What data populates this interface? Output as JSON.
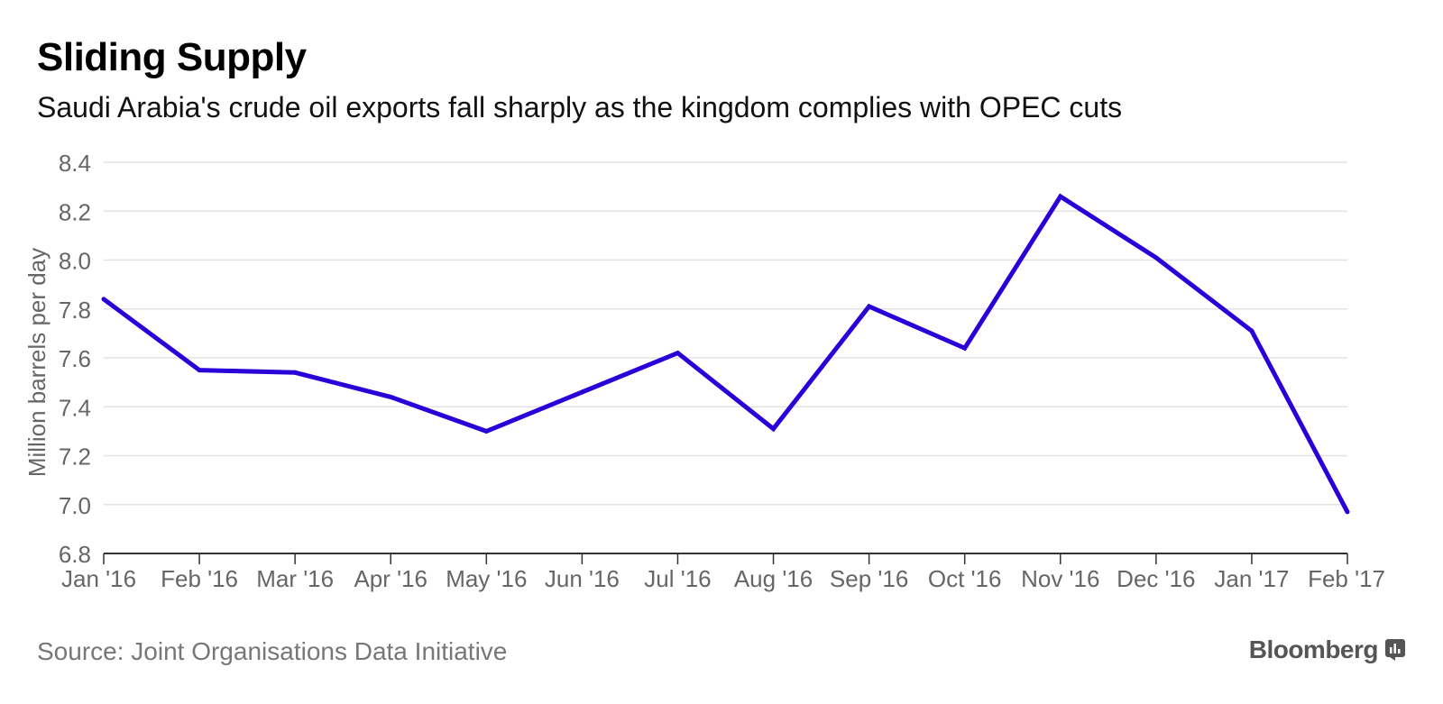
{
  "header": {
    "title": "Sliding Supply",
    "subtitle": "Saudi Arabia's crude oil exports fall sharply as the kingdom complies with OPEC cuts"
  },
  "footer": {
    "source": "Source: Joint Organisations Data Initiative",
    "brand": "Bloomberg",
    "brand_icon": "bloomberg-terminal-icon"
  },
  "colors": {
    "line": "#2a00d8",
    "grid": "#e3e3e3",
    "axis": "#333333",
    "tick_text": "#666666"
  },
  "chart_data": {
    "type": "line",
    "categories": [
      "Jan '16",
      "Feb '16",
      "Mar '16",
      "Apr '16",
      "May '16",
      "Jun '16",
      "Jul '16",
      "Aug '16",
      "Sep '16",
      "Oct '16",
      "Nov '16",
      "Dec '16",
      "Jan '17",
      "Feb '17"
    ],
    "series": [
      {
        "values": [
          7.84,
          7.55,
          7.54,
          7.44,
          7.3,
          7.46,
          7.62,
          7.31,
          7.81,
          7.64,
          8.26,
          8.01,
          7.71,
          6.97
        ]
      }
    ],
    "ylabel": "Million barrels per day",
    "xlabel": "",
    "ylim": [
      6.8,
      8.4
    ],
    "yticks": [
      "6.8",
      "7.0",
      "7.2",
      "7.4",
      "7.6",
      "7.8",
      "8.0",
      "8.2",
      "8.4"
    ],
    "grid": true
  }
}
